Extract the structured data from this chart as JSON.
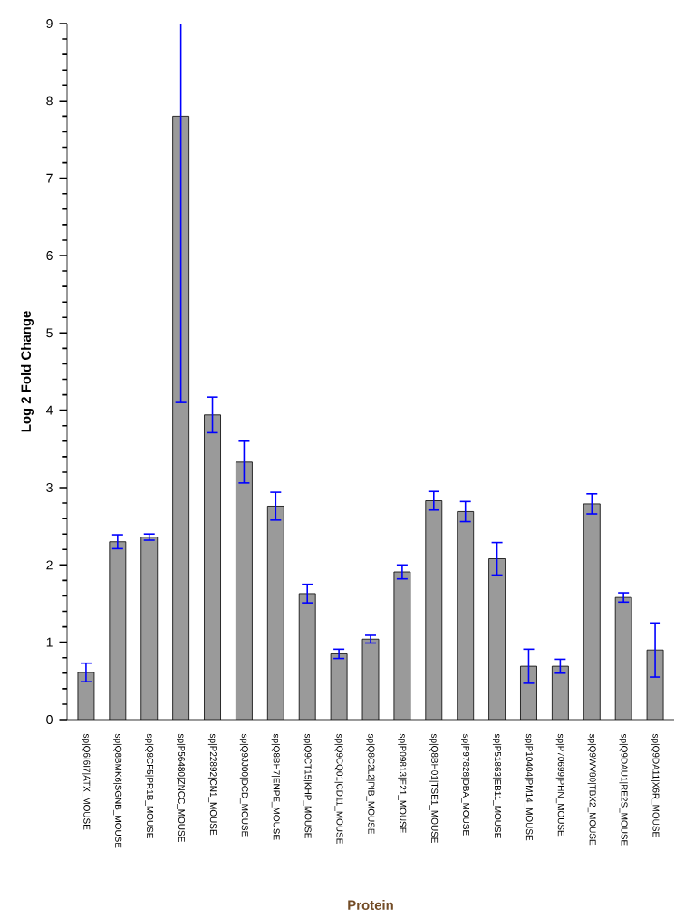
{
  "chart_data": {
    "type": "bar",
    "xlabel": "Protein",
    "ylabel": "Log 2 Fold Change",
    "categories": [
      "sp|Q6I6I7|ATX_MOUSE",
      "sp|Q8BMK6|SGNB_MOUSE",
      "sp|Q8CF5|PR1B_MOUSE",
      "sp|P56480|ZNCC_MOUSE",
      "sp|P22892|CN1_MOUSE",
      "sp|Q9JJ00|DCD_MOUSE",
      "sp|Q8BH7|ENPE_MOUSE",
      "sp|Q9CT15|KHP_MOUSE",
      "sp|Q9CQ01|CD11_MOUSE",
      "sp|Q8C2L2|PIB_MOUSE",
      "sp|P09813|E21_MOUSE",
      "sp|Q8BH01|TSE1_MOUSE",
      "sp|P97828|DBA_MOUSE",
      "sp|P51863|EB11_MOUSE",
      "sp|P10404|PM14_MOUSE",
      "sp|P70699|PHN_MOUSE",
      "sp|Q9WV80|TBX2_MOUSE",
      "sp|Q9DAU1|RE2S_MOUSE",
      "sp|Q9DA11|X6R_MOUSE"
    ],
    "values": [
      0.61,
      2.3,
      2.36,
      7.8,
      3.94,
      3.33,
      2.76,
      1.63,
      0.85,
      1.04,
      1.91,
      2.83,
      2.69,
      2.08,
      0.69,
      0.69,
      2.79,
      1.58,
      0.9
    ],
    "errors": [
      0.12,
      0.09,
      0.04,
      [
        4.1,
        9
      ],
      0.23,
      0.27,
      0.18,
      0.12,
      0.06,
      0.05,
      0.09,
      0.12,
      0.13,
      0.21,
      0.22,
      0.09,
      0.13,
      0.06,
      0.35
    ],
    "color": "#9a9a9a",
    "ylim": [
      0,
      9
    ],
    "yticks": [
      0,
      1,
      2,
      3,
      4,
      5,
      6,
      7,
      8,
      9
    ],
    "grid": false
  }
}
